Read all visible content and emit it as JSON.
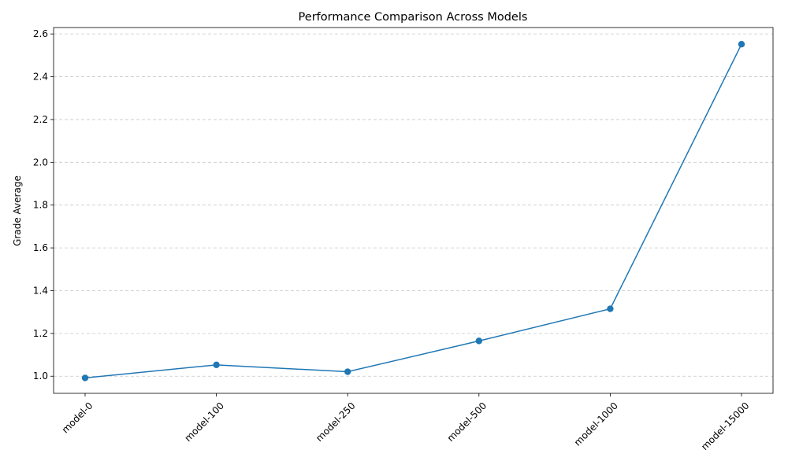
{
  "chart_data": {
    "type": "line",
    "title": "Performance Comparison Across Models",
    "xlabel": "",
    "ylabel": "Grade Average",
    "categories": [
      "model-0",
      "model-100",
      "model-250",
      "model-500",
      "model-1000",
      "model-15000"
    ],
    "series": [
      {
        "values": [
          0.992,
          1.053,
          1.021,
          1.165,
          1.315,
          2.552
        ],
        "color": "#1f77b4",
        "marker": "circle"
      }
    ],
    "ylim": [
      0.92,
      2.63
    ],
    "yticks": [
      "1.0",
      "1.2",
      "1.4",
      "1.6",
      "1.8",
      "2.0",
      "2.2",
      "2.4",
      "2.6"
    ],
    "grid": "y-dashed",
    "legend": "none"
  }
}
